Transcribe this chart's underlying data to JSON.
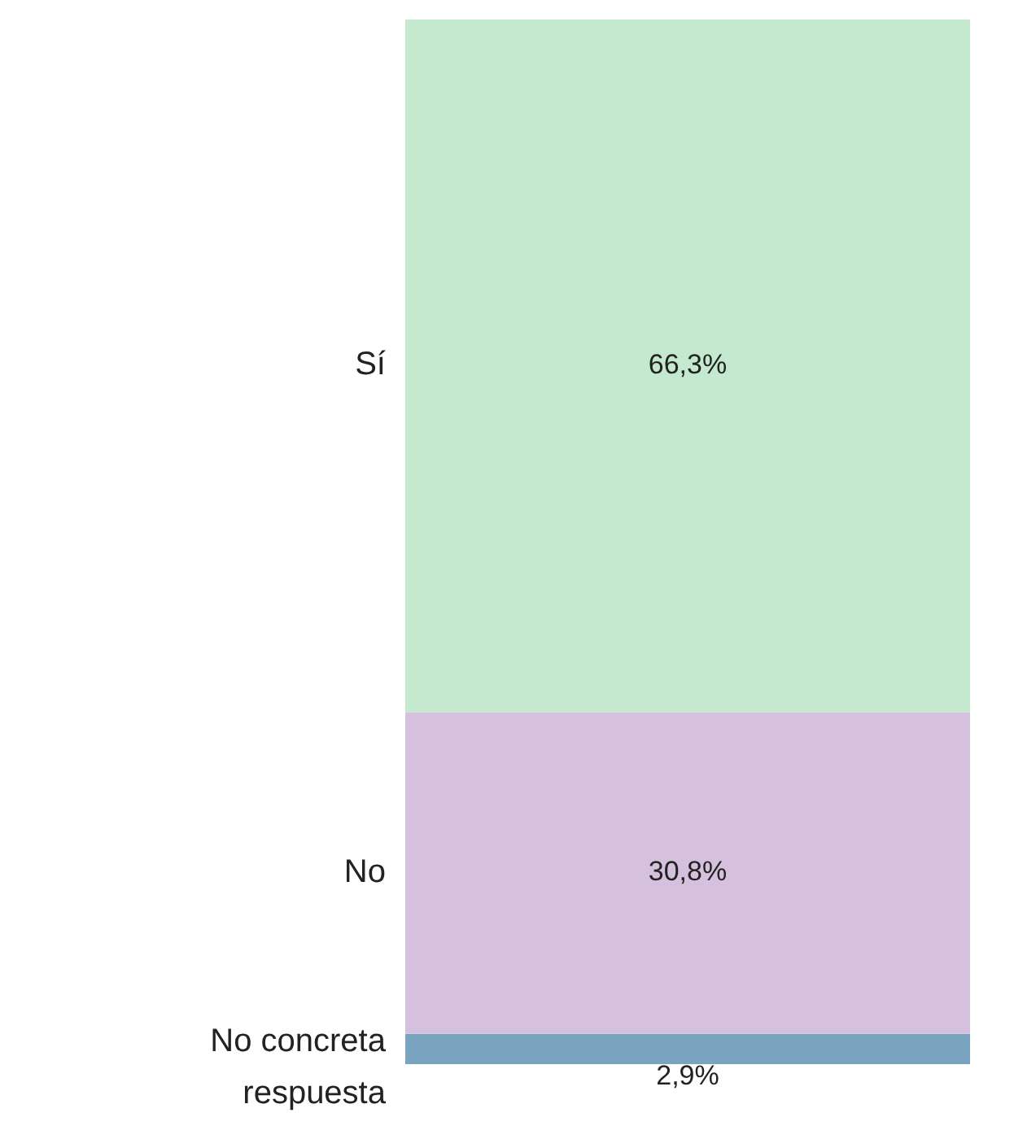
{
  "chart_data": {
    "type": "bar",
    "stacked": true,
    "categories": [
      null
    ],
    "series": [
      {
        "name": "No concreta respuesta",
        "color": "#7aa3c0",
        "values": [
          2.9
        ],
        "value_labels": [
          "2,9%"
        ]
      },
      {
        "name": "No",
        "color": "#d5c0de",
        "values": [
          30.8
        ],
        "value_labels": [
          "30,8%"
        ]
      },
      {
        "name": "Sí",
        "color": "#c5e9cf",
        "values": [
          66.3
        ],
        "value_labels": [
          "66,3%"
        ]
      }
    ]
  }
}
